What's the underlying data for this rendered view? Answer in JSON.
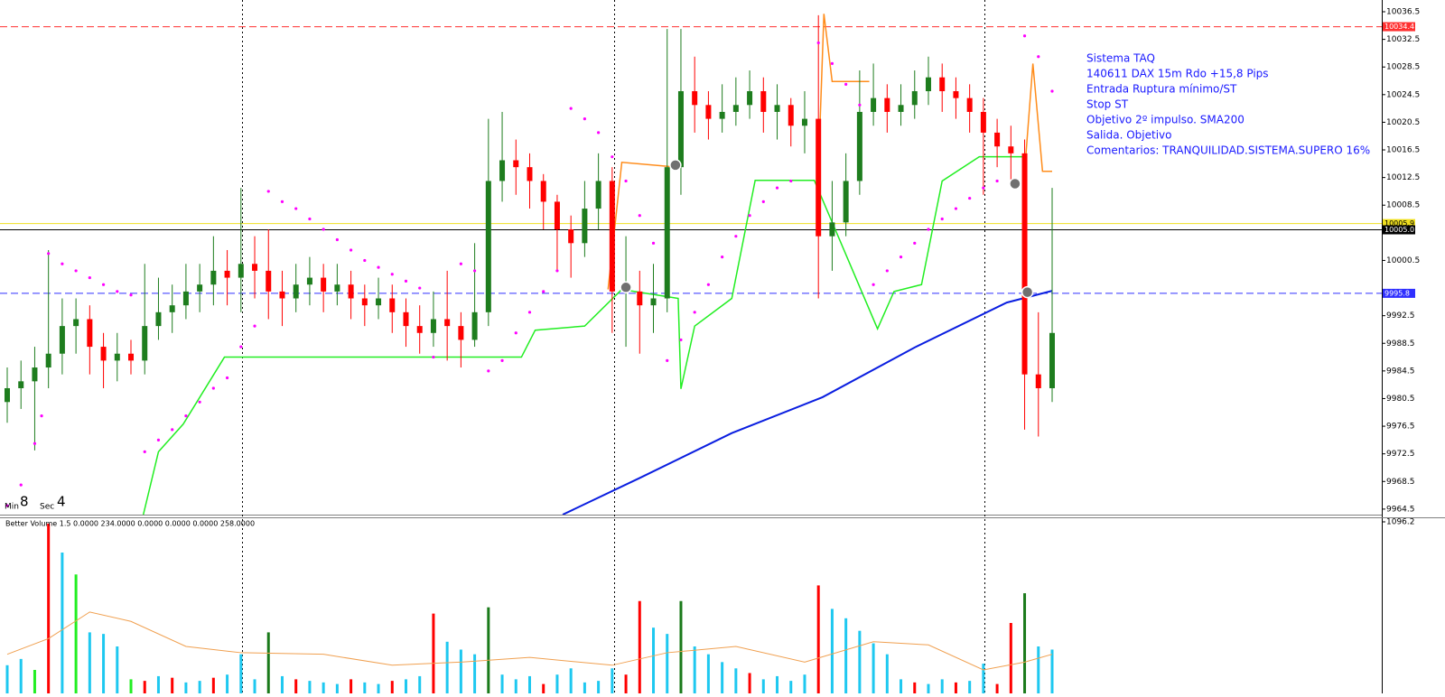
{
  "chart_data": {
    "type": "candlestick",
    "ylim": [
      9963.7,
      10038.2
    ],
    "yticks": [
      10036.5,
      10032.5,
      10028.5,
      10024.5,
      10020.5,
      10016.5,
      10012.5,
      10008.5,
      10000.5,
      9992.5,
      9988.5,
      9984.5,
      9980.5,
      9976.5,
      9972.5,
      9968.5,
      9964.5
    ],
    "up_color": "#1e7d1e",
    "down_color": "#ff0000",
    "open": [
      9980,
      9982,
      9983,
      9985,
      9987,
      9991,
      9992,
      9988,
      9986,
      9987,
      9986,
      9991,
      9993,
      9994,
      9996,
      9997,
      9999,
      9998,
      10000,
      9999,
      9996,
      9995,
      9997,
      9998,
      9996,
      9997,
      9995,
      9994,
      9995,
      9993,
      9991,
      9990,
      9992,
      9991,
      9989,
      9993,
      10012,
      10015,
      10014,
      10012,
      10009,
      10005,
      10003,
      10008,
      10012,
      9996,
      9996,
      9994,
      9995,
      10014,
      10025,
      10023,
      10021,
      10022,
      10023,
      10025,
      10022,
      10023,
      10020,
      10021,
      10004,
      10006,
      10012,
      10022,
      10024,
      10022,
      10023,
      10025,
      10027,
      10025,
      10024,
      10022,
      10019,
      10017,
      10016,
      9984,
      9982
    ],
    "high": [
      9985,
      9986,
      9988,
      10002,
      9995,
      9995,
      9994,
      9990,
      9990,
      9989,
      10000,
      9998,
      9997,
      10000,
      10000,
      10004,
      10002,
      10011,
      10004,
      10005,
      9999,
      10000,
      10001,
      10000,
      10000,
      9999,
      9997,
      9998,
      9997,
      9995,
      9994,
      9996,
      9999,
      9993,
      10003,
      10021,
      10022,
      10018,
      10016,
      10013,
      10010,
      10007,
      10012,
      10016,
      10014,
      10004,
      9999,
      10000,
      10034,
      10034,
      10030,
      10025,
      10026,
      10027,
      10028,
      10027,
      10026,
      10024,
      10025,
      10036,
      10012,
      10016,
      10028,
      10029,
      10026,
      10026,
      10028,
      10030,
      10029,
      10027,
      10026,
      10024,
      10021,
      10020,
      10018,
      9993,
      10011
    ],
    "low": [
      9977,
      9979,
      9973,
      9982,
      9984,
      9987,
      9984,
      9982,
      9983,
      9984,
      9984,
      9989,
      9990,
      9992,
      9993,
      9994,
      9994,
      9993,
      9995,
      9992,
      9991,
      9993,
      9994,
      9993,
      9994,
      9992,
      9991,
      9992,
      9990,
      9988,
      9987,
      9988,
      9986,
      9985,
      9988,
      9991,
      10009,
      10010,
      10008,
      10005,
      9999,
      9998,
      10001,
      10005,
      9990,
      9988,
      9987,
      9990,
      9993,
      10010,
      10019,
      10018,
      10019,
      10020,
      10021,
      10019,
      10018,
      10017,
      10016,
      9995,
      9999,
      10004,
      10010,
      10020,
      10019,
      10020,
      10021,
      10023,
      10022,
      10021,
      10019,
      10010,
      10014,
      10012,
      9976,
      9975,
      9980
    ],
    "close": [
      9982,
      9983,
      9985,
      9987,
      9991,
      9992,
      9988,
      9986,
      9987,
      9986,
      9991,
      9993,
      9994,
      9996,
      9997,
      9999,
      9998,
      10000,
      9999,
      9996,
      9995,
      9997,
      9998,
      9996,
      9997,
      9995,
      9994,
      9995,
      9993,
      9991,
      9990,
      9992,
      9991,
      9989,
      9993,
      10012,
      10015,
      10014,
      10012,
      10009,
      10005,
      10003,
      10008,
      10012,
      9996,
      9996,
      9994,
      9995,
      10014,
      10025,
      10023,
      10021,
      10022,
      10023,
      10025,
      10022,
      10023,
      10020,
      10021,
      10004,
      10006,
      10012,
      10022,
      10024,
      10022,
      10023,
      10025,
      10027,
      10025,
      10024,
      10022,
      10019,
      10017,
      10016,
      9984,
      9982,
      9990
    ],
    "sma": {
      "color": "#0a1ee0",
      "x": [
        40.4,
        46,
        52.7,
        59.3,
        66,
        72.7,
        76
      ],
      "values": [
        9963.7,
        9969.0,
        9975.5,
        9980.7,
        9987.9,
        9994.4,
        9996.1
      ]
    },
    "stop": {
      "color": "#22ee22",
      "x": [
        9.9,
        11,
        12.8,
        15.8,
        37.4,
        38.4,
        42,
        44.7,
        48.8,
        49,
        50,
        52.7,
        54.4,
        58.7,
        63.3,
        64.5,
        66.5,
        68,
        70.7,
        74
      ],
      "values": [
        9963.7,
        9972.8,
        9976.8,
        9986.5,
        9986.5,
        9990.4,
        9991,
        9996.3,
        9995,
        9981.9,
        9991,
        9995,
        10012.1,
        10012.1,
        9990.6,
        9996,
        9997,
        10012,
        10015.5,
        10015.5
      ]
    },
    "target": {
      "color": "#ff8c1a",
      "x": [
        43.7,
        44.7,
        48.7,
        48.8,
        59,
        59.4,
        60,
        62.7,
        62.8,
        74,
        74.6,
        75.3,
        76
      ],
      "values": [
        9996.3,
        10014.7,
        10014,
        null,
        10013.6,
        10036.2,
        10026.4,
        10026.4,
        null,
        10013.4,
        10029,
        10013.4,
        10013.4
      ]
    },
    "sar": {
      "color": "#ff00ff",
      "x": [
        0,
        1,
        2,
        2.5,
        3,
        4,
        5,
        6,
        7,
        8,
        9,
        10,
        11,
        12,
        13,
        14,
        15,
        16,
        17,
        18,
        19,
        20,
        21,
        22,
        23,
        24,
        25,
        26,
        27,
        28,
        29,
        30,
        31,
        33,
        34,
        35,
        36,
        37,
        38,
        39,
        40,
        41,
        42,
        43,
        44,
        45,
        46,
        47,
        48,
        49,
        50,
        51,
        52,
        53,
        54,
        55,
        56,
        57,
        59,
        60,
        61,
        62,
        63,
        64,
        65,
        66,
        67,
        68,
        69,
        70,
        71,
        72,
        74,
        75,
        76
      ],
      "values": [
        9965,
        9968,
        9974,
        9978,
        10001.5,
        10000,
        9999,
        9998,
        9997,
        9996,
        9995.5,
        9972.8,
        9974.5,
        9976,
        9978,
        9980,
        9982,
        9983.5,
        9988,
        9991,
        10010.5,
        10009,
        10008,
        10006.5,
        10005,
        10003.5,
        10002,
        10000.5,
        9999.5,
        9998.5,
        9997.5,
        9996.5,
        9986.5,
        10000,
        9999,
        9984.5,
        9986,
        9990,
        9993,
        9996,
        9999,
        10022.5,
        10021,
        10019,
        10015.5,
        10012,
        10007,
        10003,
        9986,
        9989,
        9993,
        9997,
        10001,
        10004,
        10007,
        10009,
        10011,
        10012,
        10032,
        10029,
        10026,
        10023,
        9997,
        9999,
        10001,
        10003,
        10005,
        10006.5,
        10008,
        10009.5,
        10011,
        10012,
        10033,
        10030,
        10025
      ]
    },
    "trades": {
      "color": "#707070",
      "x": [
        48.6,
        45,
        73.3,
        74.2
      ],
      "values": [
        10014.3,
        9996.6,
        10011.6,
        9995.9
      ]
    },
    "levels": [
      {
        "value": 10034.4,
        "label": "10034.4",
        "color": "#ff3030",
        "style": "dashed"
      },
      {
        "value": 10005.9,
        "label": "10005.9",
        "color": "#f0e020",
        "style": "solid"
      },
      {
        "value": 10005.0,
        "label": "10005.0",
        "color": "#000000",
        "style": "solid"
      },
      {
        "value": 9995.8,
        "label": "9995.8",
        "color": "#3030ff",
        "style": "dashed"
      }
    ],
    "timer": {
      "min_label": "Min",
      "min": 8,
      "sec_label": "Sec",
      "sec": 4
    },
    "annotation": [
      "Sistema TAQ",
      "140611 DAX 15m Rdo +15,8 Pips",
      "Entrada Ruptura mínimo/ST",
      "Stop ST",
      "Objetivo 2º impulso. SMA200",
      "Salida. Objetivo",
      "Comentarios: TRANQUILIDAD.SISTEMA.SUPERO 16%"
    ],
    "annotation_color": "#1a1aff",
    "volume": {
      "title": "Better Volume 1.5 0.0000 234.0000 0.0000 0.0000 0.0000 258.0000",
      "ylim": [
        0,
        1096.2
      ],
      "yticks": [
        1096.2
      ],
      "values": [
        180,
        220,
        150,
        1085,
        900,
        760,
        390,
        380,
        300,
        90,
        80,
        110,
        100,
        70,
        80,
        100,
        120,
        250,
        90,
        390,
        110,
        90,
        80,
        70,
        60,
        90,
        70,
        60,
        80,
        90,
        110,
        510,
        330,
        280,
        250,
        550,
        120,
        90,
        110,
        60,
        120,
        160,
        70,
        80,
        160,
        120,
        590,
        420,
        380,
        590,
        300,
        250,
        200,
        160,
        130,
        90,
        110,
        80,
        120,
        690,
        540,
        480,
        400,
        320,
        250,
        90,
        70,
        60,
        90,
        70,
        80,
        190,
        60,
        450,
        640,
        300,
        280
      ],
      "colors": [
        "#1ec8f0",
        "#1ec8f0",
        "#22ee22",
        "#ff0000",
        "#1ec8f0",
        "#22ee22",
        "#1ec8f0",
        "#1ec8f0",
        "#1ec8f0",
        "#22ee22",
        "#ff0000",
        "#1ec8f0",
        "#ff0000",
        "#1ec8f0",
        "#1ec8f0",
        "#ff0000",
        "#1ec8f0",
        "#1ec8f0",
        "#1ec8f0",
        "#1a7a1a",
        "#1ec8f0",
        "#ff0000",
        "#1ec8f0",
        "#1ec8f0",
        "#1ec8f0",
        "#ff0000",
        "#1ec8f0",
        "#1ec8f0",
        "#ff0000",
        "#1ec8f0",
        "#1ec8f0",
        "#ff0000",
        "#1ec8f0",
        "#1ec8f0",
        "#1ec8f0",
        "#1a7a1a",
        "#1ec8f0",
        "#1ec8f0",
        "#1ec8f0",
        "#ff0000",
        "#1ec8f0",
        "#1ec8f0",
        "#1ec8f0",
        "#1ec8f0",
        "#1ec8f0",
        "#ff0000",
        "#ff0000",
        "#1ec8f0",
        "#1ec8f0",
        "#1a7a1a",
        "#1ec8f0",
        "#1ec8f0",
        "#1ec8f0",
        "#1ec8f0",
        "#ff0000",
        "#1ec8f0",
        "#1ec8f0",
        "#1ec8f0",
        "#1ec8f0",
        "#ff0000",
        "#1ec8f0",
        "#1ec8f0",
        "#1ec8f0",
        "#1ec8f0",
        "#1ec8f0",
        "#1ec8f0",
        "#ff0000",
        "#1ec8f0",
        "#1ec8f0",
        "#ff0000",
        "#1ec8f0",
        "#1ec8f0",
        "#ff0000",
        "#ff0000",
        "#1a7a1a",
        "#1ec8f0",
        "#1ec8f0"
      ],
      "ma": {
        "color": "#f0a050",
        "x": [
          0,
          3,
          6,
          9,
          13,
          17,
          23,
          28,
          33,
          38,
          44,
          48,
          53,
          58,
          63,
          67,
          71,
          74,
          76
        ],
        "values": [
          250,
          350,
          520,
          460,
          300,
          260,
          250,
          180,
          200,
          230,
          180,
          260,
          300,
          200,
          330,
          310,
          150,
          200,
          250
        ]
      }
    }
  }
}
